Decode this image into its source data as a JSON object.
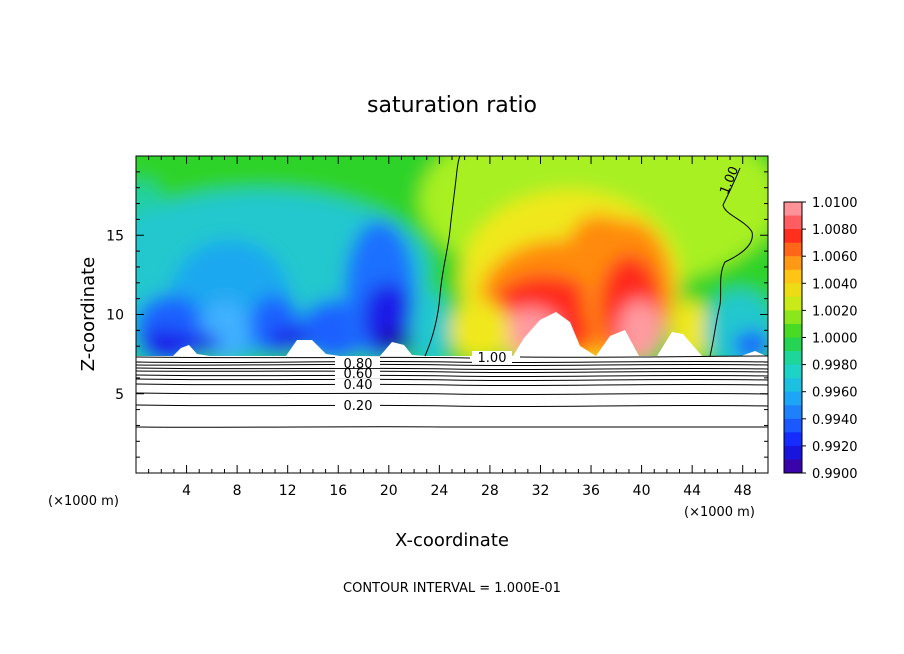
{
  "chart_data": {
    "type": "heatmap",
    "title": "saturation ratio",
    "xlabel": "X-coordinate",
    "ylabel": "Z-coordinate",
    "x_unit": "(×1000 m)",
    "z_unit": "(×1000 m)",
    "footnote": "CONTOUR INTERVAL = 1.000E-01",
    "xlim": [
      0,
      50
    ],
    "ylim": [
      0,
      20
    ],
    "x_ticks": [
      4,
      8,
      12,
      16,
      20,
      24,
      28,
      32,
      36,
      40,
      44,
      48
    ],
    "y_ticks": [
      5,
      10,
      15
    ],
    "colorbar": {
      "min": 0.99,
      "max": 1.01,
      "ticks": [
        "1.0100",
        "1.0080",
        "1.0060",
        "1.0040",
        "1.0020",
        "1.0000",
        "0.9980",
        "0.9960",
        "0.9940",
        "0.9920",
        "0.9900"
      ]
    },
    "contour_labels": [
      {
        "text": "0.80",
        "x": 17.4,
        "z": 6.8
      },
      {
        "text": "0.60",
        "x": 17.4,
        "z": 6.2
      },
      {
        "text": "0.40",
        "x": 17.4,
        "z": 5.5
      },
      {
        "text": "0.20",
        "x": 17.4,
        "z": 4.1
      },
      {
        "text": "1.00",
        "x": 28.0,
        "z": 7.2
      },
      {
        "text": "1.00",
        "x": 47.0,
        "z": 18.5
      }
    ],
    "contour_levels": [
      0.2,
      0.4,
      0.6,
      0.8,
      1.0
    ],
    "cloud_base_z": 7.3
  }
}
